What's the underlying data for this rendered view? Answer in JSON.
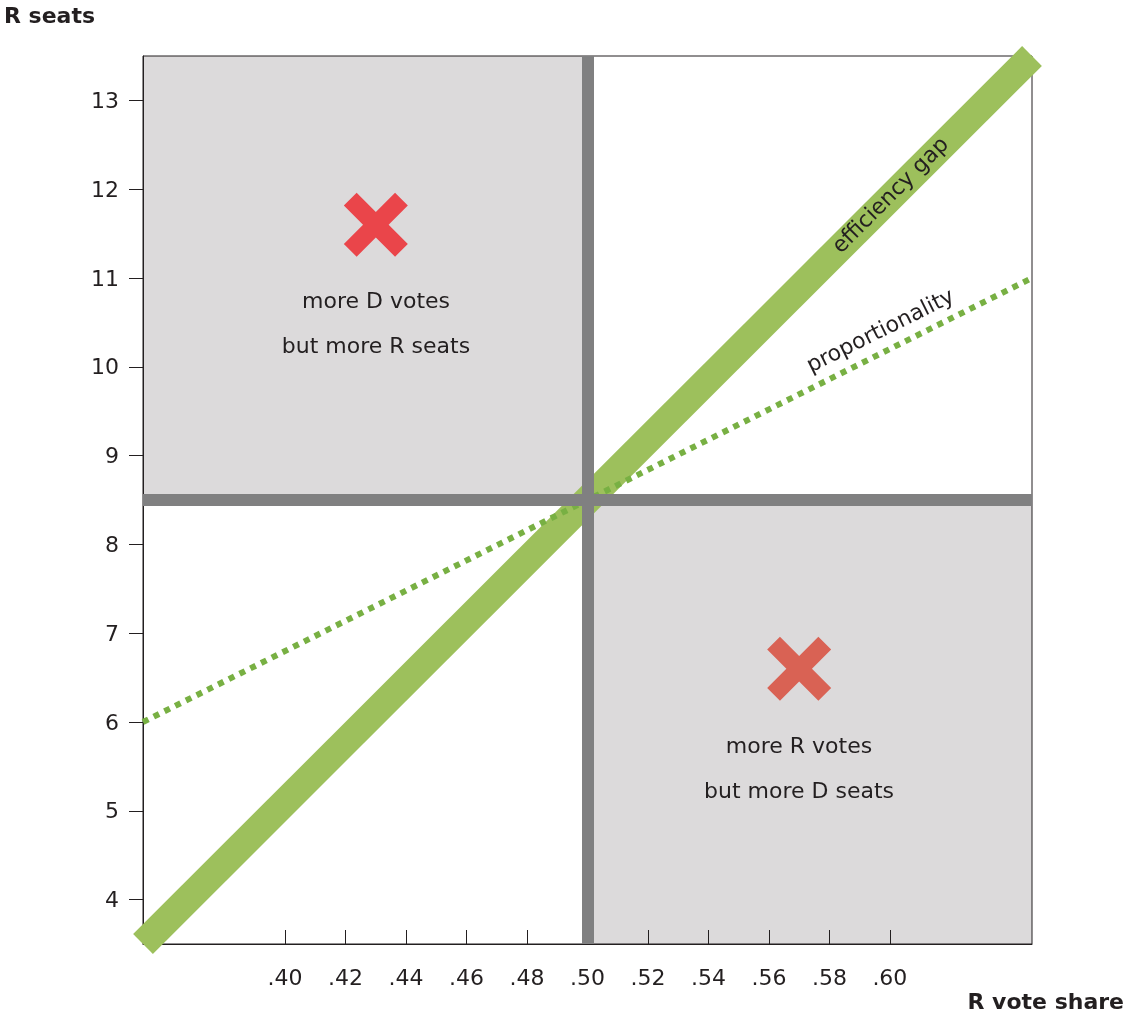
{
  "chart_data": {
    "type": "line",
    "xlabel": "R vote share",
    "ylabel": "R seats",
    "xlim": [
      0.353,
      0.647
    ],
    "ylim": [
      3.5,
      13.5
    ],
    "xticks": [
      {
        "value": 0.4,
        "label": ".40"
      },
      {
        "value": 0.42,
        "label": ".42"
      },
      {
        "value": 0.44,
        "label": ".44"
      },
      {
        "value": 0.46,
        "label": ".46"
      },
      {
        "value": 0.48,
        "label": ".48"
      },
      {
        "value": 0.5,
        "label": ".50"
      },
      {
        "value": 0.52,
        "label": ".52"
      },
      {
        "value": 0.54,
        "label": ".54"
      },
      {
        "value": 0.56,
        "label": ".56"
      },
      {
        "value": 0.58,
        "label": ".58"
      },
      {
        "value": 0.6,
        "label": ".60"
      }
    ],
    "yticks": [
      4,
      5,
      6,
      7,
      8,
      9,
      10,
      11,
      12,
      13
    ],
    "grid": false,
    "marker": "none",
    "series": [
      {
        "type": "line",
        "color": "#9dc05c",
        "x": [
          0.353,
          0.647
        ],
        "values": [
          3.5,
          13.5
        ]
      },
      {
        "type": "line",
        "color": "#78b043",
        "line_style": "dotted",
        "x": [
          0.353,
          0.647
        ],
        "values": [
          6.0,
          11.0
        ]
      },
      {
        "type": "scatter",
        "color": "#ee1f25",
        "marker": "cross",
        "x": [
          0.43
        ],
        "values": [
          11.6
        ]
      },
      {
        "type": "scatter",
        "color": "#d84432",
        "marker": "cross",
        "x": [
          0.57
        ],
        "values": [
          6.6
        ]
      }
    ],
    "ref_lines": [
      {
        "axis": "x",
        "value": 0.5,
        "color": "#808081"
      },
      {
        "axis": "y",
        "value": 8.5,
        "color": "#808081"
      }
    ],
    "annotations": [
      {
        "text": "efficiency gap",
        "x": 0.6,
        "y": 11.94
      },
      "proportionality",
      "more D votes\nbut more R seats",
      "more R votes\nbut more D seats"
    ]
  }
}
